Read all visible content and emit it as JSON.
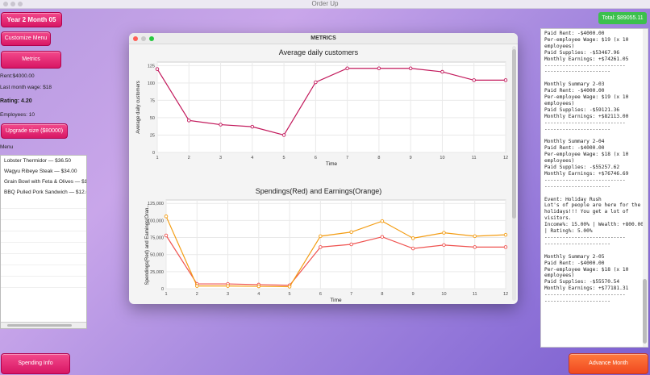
{
  "window": {
    "title": "Order Up"
  },
  "header": {
    "period": "Year 2   Month 05",
    "total": "Total: $89055.11"
  },
  "sidebar": {
    "customize_menu": "Customize Menu",
    "metrics": "Metrics",
    "rent": "Rent:$4000.00",
    "last_month_wage": "Last month wage: $18",
    "rating": "Rating: 4.20",
    "employees": "Employees: 10",
    "upgrade": "Upgrade size ($80000)",
    "menu_label": "Menu",
    "menu_items": [
      "Lobster Thermidor — $36.50",
      "Wagyu Ribeye Steak — $34.00",
      "Grain Bowl with Feta & Olives — $1",
      "BBQ Pulled Pork Sandwich — $12.0"
    ]
  },
  "bottom": {
    "spending_info": "Spending Info",
    "advance_month": "Advance Month"
  },
  "metrics_window": {
    "title": "METRICS"
  },
  "summary_text": "Paid Rent: -$4000.00\nPer-employee Wage: $19 (x 10 employees)\nPaid Supplies: -$53467.96\nMonthly Earnings: +$74261.05\n---------------------------\n----------------------\n\nMonthly Summary 2-03\nPaid Rent: -$4000.00\nPer-employee Wage: $19 (x 10 employees)\nPaid Supplies: -$59121.36\nMonthly Earnings: +$82113.00\n---------------------------\n----------------------\n\nMonthly Summary 2-04\nPaid Rent: -$4000.00\nPer-employee Wage: $18 (x 10 employees)\nPaid Supplies: -$55257.62\nMonthly Earnings: +$76746.69\n---------------------------\n----------------------\n\nEvent: Holiday Rush\nLot's of people are here for the holidays!!! You get a lot of visitors.\nIncome%: 15.00% | Wealth: +800.00 | Rating%: 5.00%\n---------------------------\n----------------------\n\nMonthly Summary 2-05\nPaid Rent: -$4000.00\nPer-employee Wage: $18 (x 10 employees)\nPaid Supplies: -$55570.54\nMonthly Earnings: +$77181.31\n---------------------------\n----------------------",
  "chart_data": [
    {
      "type": "line",
      "title": "Average daily customers",
      "xlabel": "Time",
      "ylabel": "Average daily customers",
      "x": [
        1,
        2,
        3,
        4,
        5,
        6,
        7,
        8,
        9,
        10,
        11,
        12
      ],
      "xticks": [
        "1",
        "2",
        "3",
        "4",
        "5",
        "6",
        "7",
        "8",
        "9",
        "10",
        "11",
        "12"
      ],
      "yticks": [
        "0",
        "25",
        "50",
        "75",
        "100",
        "125"
      ],
      "ylim": [
        0,
        130
      ],
      "grid": true,
      "series": [
        {
          "color": "#c2185b",
          "values": [
            120,
            46,
            40,
            37,
            25,
            101,
            121,
            121,
            121,
            116,
            104,
            104
          ]
        }
      ]
    },
    {
      "type": "line",
      "title": "Spendings(Red) and Earnings(Orange)",
      "xlabel": "Time",
      "ylabel": "Spendings(Red) and Earnings(Oran...",
      "x": [
        1,
        2,
        3,
        4,
        5,
        6,
        7,
        8,
        9,
        10,
        11,
        12
      ],
      "xticks": [
        "1",
        "2",
        "3",
        "4",
        "5",
        "6",
        "7",
        "8",
        "9",
        "10",
        "11",
        "12"
      ],
      "yticks": [
        "0",
        "25,000",
        "50,000",
        "75,000",
        "100,000",
        "125,000"
      ],
      "ylim": [
        0,
        130000
      ],
      "grid": true,
      "series": [
        {
          "color": "#ef5350",
          "values": [
            78000,
            7000,
            7000,
            6000,
            5000,
            61000,
            65000,
            76000,
            59000,
            64000,
            61000,
            61000
          ]
        },
        {
          "color": "#f39c12",
          "values": [
            106000,
            4000,
            4000,
            3500,
            3000,
            77000,
            83000,
            99000,
            74000,
            82000,
            77000,
            79000
          ]
        }
      ]
    }
  ]
}
